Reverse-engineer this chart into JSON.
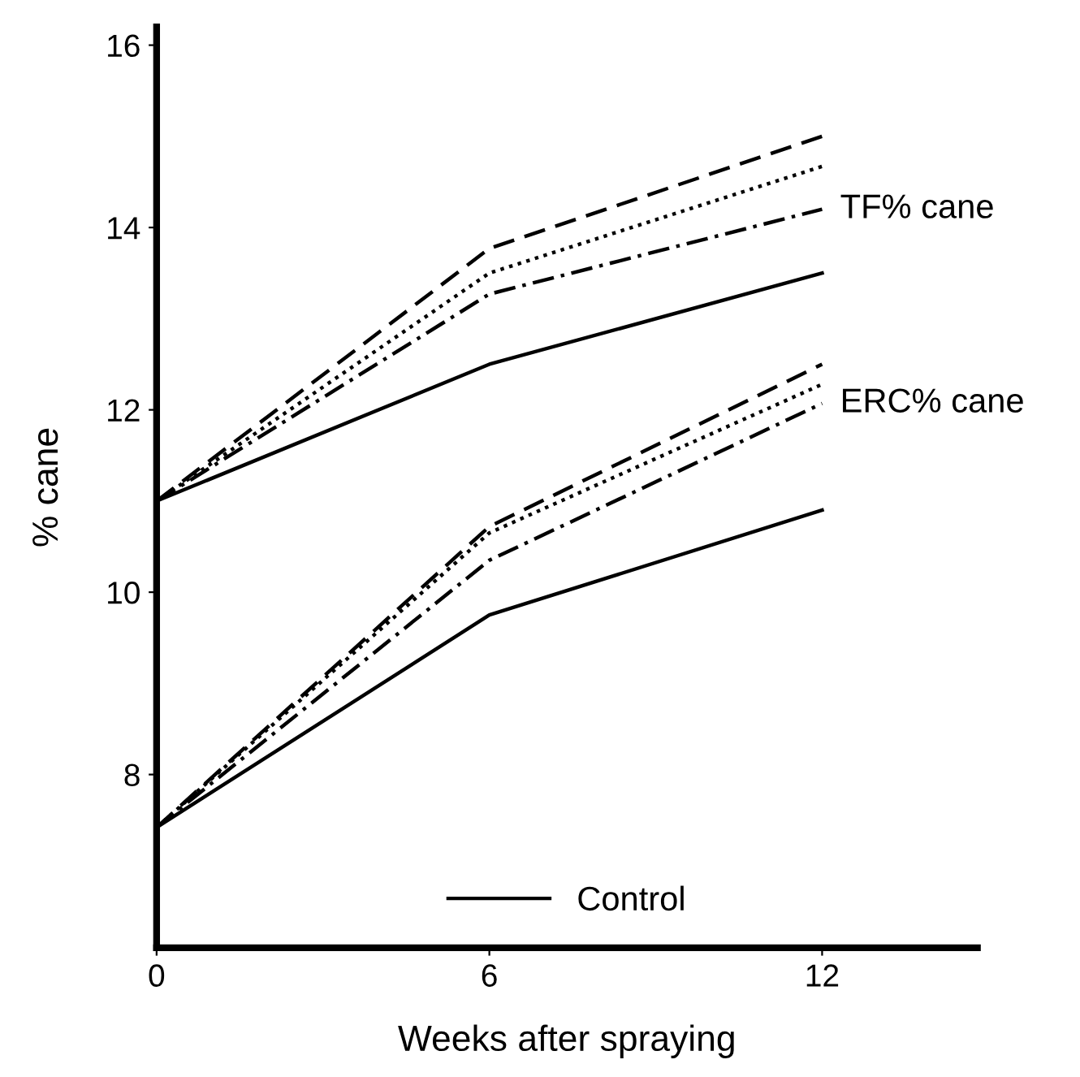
{
  "chart_data": {
    "type": "line",
    "xlabel": "Weeks after spraying",
    "ylabel": "% cane",
    "x": [
      0,
      6,
      12
    ],
    "xlim": [
      0,
      14.8
    ],
    "xticks": [
      0,
      6,
      12
    ],
    "ylim": [
      6.1,
      16.2
    ],
    "yticks": [
      8,
      10,
      12,
      14,
      16
    ],
    "grid": false,
    "legend": "bottom",
    "marker": "none",
    "series": [
      {
        "color": "#000000",
        "line_style": "dashed",
        "values": [
          11.0,
          13.77,
          15.0
        ]
      },
      {
        "color": "#000000",
        "line_style": "dotted",
        "values": [
          11.0,
          13.5,
          14.67
        ]
      },
      {
        "color": "#000000",
        "line_style": "dashdot",
        "values": [
          11.0,
          13.27,
          14.2
        ]
      },
      {
        "name": "Control",
        "color": "#000000",
        "line_style": "solid",
        "values": [
          11.0,
          12.5,
          13.5
        ]
      },
      {
        "color": "#000000",
        "line_style": "dashed",
        "values": [
          7.42,
          10.72,
          12.5
        ]
      },
      {
        "color": "#000000",
        "line_style": "dotted",
        "values": [
          7.42,
          10.65,
          12.28
        ]
      },
      {
        "color": "#000000",
        "line_style": "dashdot",
        "values": [
          7.42,
          10.35,
          12.07
        ]
      },
      {
        "color": "#000000",
        "line_style": "solid",
        "values": [
          7.42,
          9.75,
          10.9
        ]
      }
    ],
    "annotations": [
      {
        "text": "TF% cane",
        "x": 12,
        "y": 14.2
      },
      {
        "text": "ERC% cane",
        "x": 12,
        "y": 12.07
      }
    ]
  }
}
